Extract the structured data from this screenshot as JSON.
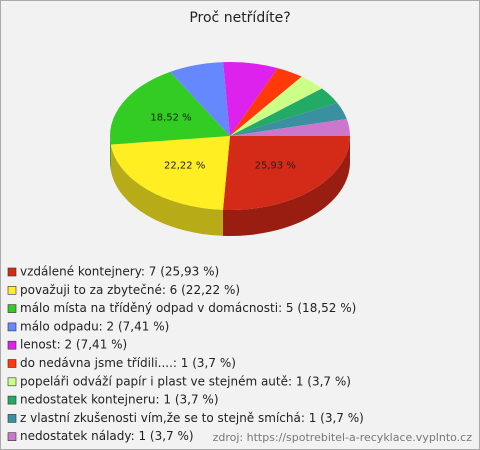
{
  "chart_data": {
    "type": "pie",
    "title": "Proč netřídíte?",
    "categories": [
      "vzdálené kontejnery: 7 (25,93 %)",
      "považuji to za zbytečné: 6 (22,22 %)",
      "málo místa na tříděný odpad v domácnosti: 5 (18,52 %)",
      "málo odpadu: 2 (7,41 %)",
      "lenost: 2 (7,41 %)",
      "do nedávna jsme třídili....: 1 (3,7 %)",
      "popeláři odváží papír i plast ve stejném autě: 1 (3,7 %)",
      "nedostatek kontejneru: 1 (3,7 %)",
      "z vlastní zkušenosti vím,že se to stejně smíchá: 1 (3,7 %)",
      "nedostatek nálady: 1 (3,7 %)"
    ],
    "values": [
      25.93,
      22.22,
      18.52,
      7.41,
      7.41,
      3.7,
      3.7,
      3.7,
      3.7,
      3.7
    ],
    "value_labels": [
      "25,93 %",
      "22,22 %",
      "18,52 %",
      null,
      null,
      null,
      null,
      null,
      null,
      null
    ],
    "colors": [
      "#d42a18",
      "#ffee22",
      "#33cc22",
      "#6688ff",
      "#dd22ee",
      "#ff3a0a",
      "#ccff88",
      "#22aa66",
      "#3a8fa0",
      "#cc77cc"
    ],
    "source": "zdroj: https://spotrebitel-a-recyklace.vyplnto.cz"
  }
}
